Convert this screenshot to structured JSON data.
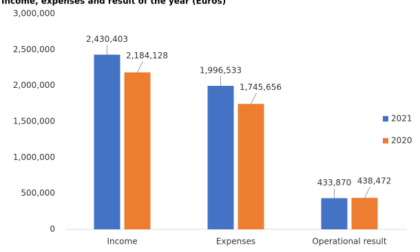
{
  "chart_data": {
    "type": "bar",
    "title": "Income, expenses and result of the year (Euros)",
    "categories": [
      "Income",
      "Expenses",
      "Operational result"
    ],
    "series": [
      {
        "name": "2021",
        "color": "#4472c4",
        "values": [
          2430403,
          1996533,
          433870
        ],
        "value_labels": [
          "2,430,403",
          "1,996,533",
          "433,870"
        ]
      },
      {
        "name": "2020",
        "color": "#ed7d31",
        "values": [
          2184128,
          1745656,
          438472
        ],
        "value_labels": [
          "2,184,128",
          "1,745,656",
          "438,472"
        ]
      }
    ],
    "ylim": [
      0,
      3000000
    ],
    "yticks": [
      {
        "value": 0,
        "label": "0"
      },
      {
        "value": 500000,
        "label": "500,000"
      },
      {
        "value": 1000000,
        "label": "1,000,000"
      },
      {
        "value": 1500000,
        "label": "1,500,000"
      },
      {
        "value": 2000000,
        "label": "2,000,000"
      },
      {
        "value": 2500000,
        "label": "2,500,000"
      },
      {
        "value": 3000000,
        "label": "3,000,000"
      }
    ],
    "grid": false,
    "legend": "right"
  }
}
